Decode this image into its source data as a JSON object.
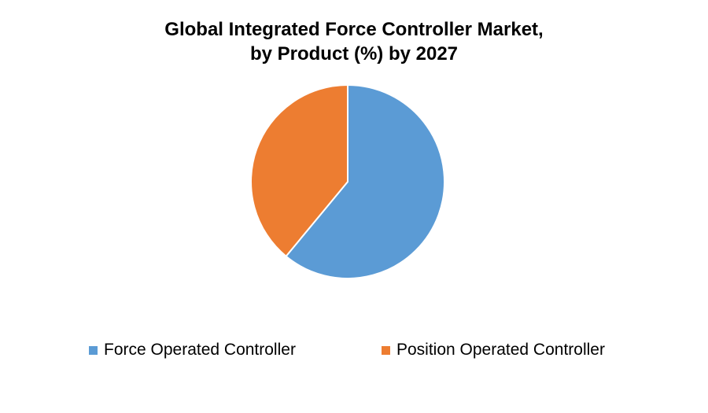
{
  "chart_data": {
    "type": "pie",
    "title_lines": [
      "Global Integrated Force Controller Market,",
      "by Product (%) by 2027"
    ],
    "categories": [
      "Force Operated Controller",
      "Position Operated Controller"
    ],
    "values": [
      61,
      39
    ],
    "colors": [
      "#5B9BD5",
      "#ED7D31"
    ],
    "start_angle_deg": 0,
    "direction": "clockwise",
    "legend_position": "bottom"
  }
}
